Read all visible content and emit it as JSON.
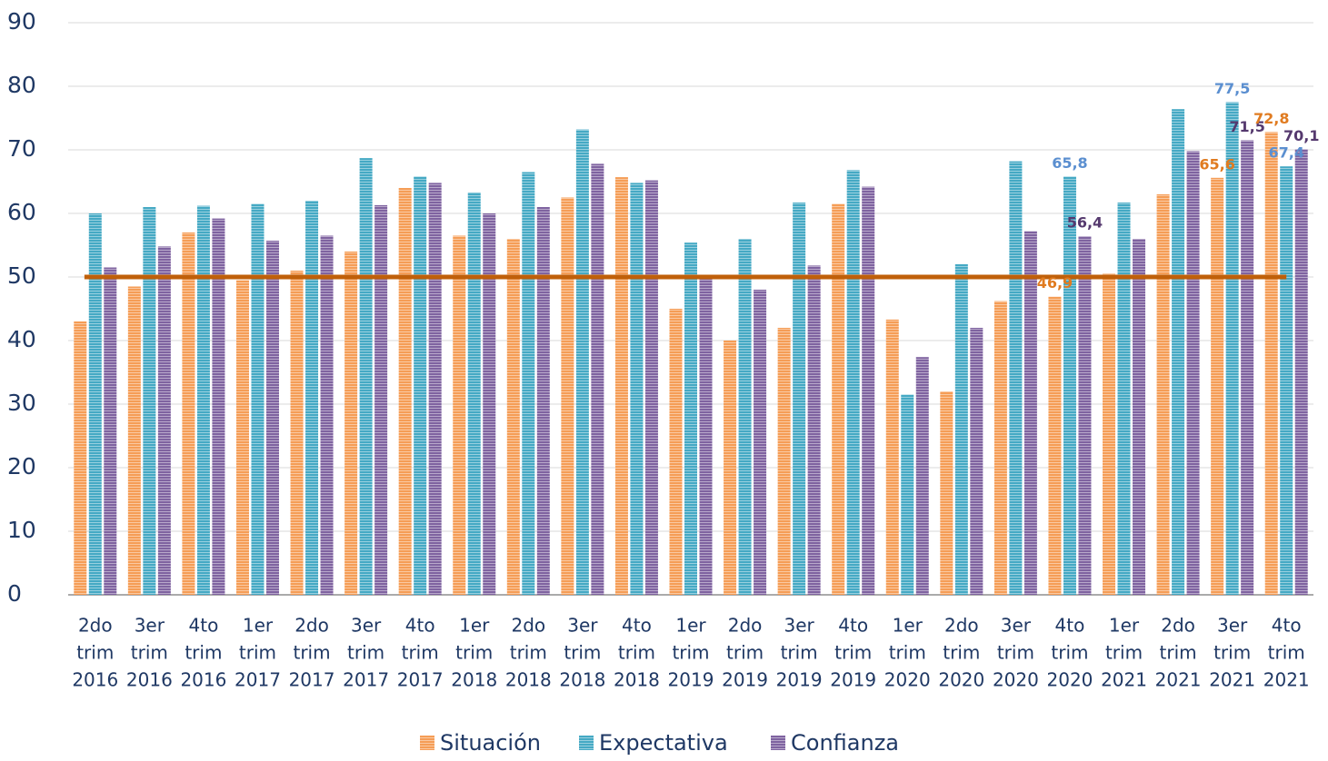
{
  "chart_data": {
    "type": "bar",
    "categories": [
      [
        "2do",
        "trim",
        "2016"
      ],
      [
        "3er",
        "trim",
        "2016"
      ],
      [
        "4to",
        "trim",
        "2016"
      ],
      [
        "1er",
        "trim",
        "2017"
      ],
      [
        "2do",
        "trim",
        "2017"
      ],
      [
        "3er",
        "trim",
        "2017"
      ],
      [
        "4to",
        "trim",
        "2017"
      ],
      [
        "1er",
        "trim",
        "2018"
      ],
      [
        "2do",
        "trim",
        "2018"
      ],
      [
        "3er",
        "trim",
        "2018"
      ],
      [
        "4to",
        "trim",
        "2018"
      ],
      [
        "1er",
        "trim",
        "2019"
      ],
      [
        "2do",
        "trim",
        "2019"
      ],
      [
        "3er",
        "trim",
        "2019"
      ],
      [
        "4to",
        "trim",
        "2019"
      ],
      [
        "1er",
        "trim",
        "2020"
      ],
      [
        "2do",
        "trim",
        "2020"
      ],
      [
        "3er",
        "trim",
        "2020"
      ],
      [
        "4to",
        "trim",
        "2020"
      ],
      [
        "1er",
        "trim",
        "2021"
      ],
      [
        "2do",
        "trim",
        "2021"
      ],
      [
        "3er",
        "trim",
        "2021"
      ],
      [
        "4to",
        "trim",
        "2021"
      ]
    ],
    "series": [
      {
        "name": "Situación",
        "color": "#f59d56",
        "label_color": "#e07b20",
        "values": [
          43,
          48.5,
          57,
          49.5,
          51,
          54,
          64,
          56.5,
          56,
          62.5,
          65.7,
          45,
          40,
          42,
          61.5,
          43.3,
          32,
          46.2,
          46.9,
          50.5,
          63,
          65.6,
          72.8
        ],
        "value_labels": [
          null,
          null,
          null,
          null,
          null,
          null,
          null,
          null,
          null,
          null,
          null,
          null,
          null,
          null,
          null,
          null,
          null,
          null,
          "46,9",
          null,
          null,
          "65,6",
          "72,8"
        ]
      },
      {
        "name": "Expectativa",
        "color": "#45a9c4",
        "label_color": "#5b8fd0",
        "values": [
          60,
          61,
          61.2,
          61.5,
          62,
          68.7,
          65.8,
          63.3,
          66.5,
          73.2,
          64.8,
          55.4,
          56,
          61.7,
          66.8,
          31.5,
          52,
          68.2,
          65.8,
          61.7,
          76.4,
          77.5,
          67.4
        ],
        "value_labels": [
          null,
          null,
          null,
          null,
          null,
          null,
          null,
          null,
          null,
          null,
          null,
          null,
          null,
          null,
          null,
          null,
          null,
          null,
          "65,8",
          null,
          null,
          "77,5",
          "67,4"
        ]
      },
      {
        "name": "Confianza",
        "color": "#7f63a0",
        "label_color": "#55396e",
        "values": [
          51.5,
          54.8,
          59.2,
          55.7,
          56.5,
          61.3,
          64.8,
          60,
          61,
          67.8,
          65.2,
          50.2,
          48,
          51.8,
          64.2,
          37.4,
          42,
          57.2,
          56.4,
          56,
          69.8,
          71.5,
          70.1
        ],
        "value_labels": [
          null,
          null,
          null,
          null,
          null,
          null,
          null,
          null,
          null,
          null,
          null,
          null,
          null,
          null,
          null,
          null,
          null,
          null,
          "56,4",
          null,
          null,
          "71,5",
          "70,1"
        ]
      }
    ],
    "reference_line": {
      "value": 50,
      "color": "#c0600a"
    },
    "ylim": [
      0,
      90
    ],
    "yticks": [
      0,
      10,
      20,
      30,
      40,
      50,
      60,
      70,
      80,
      90
    ],
    "grid": true,
    "legend": "bottom"
  }
}
